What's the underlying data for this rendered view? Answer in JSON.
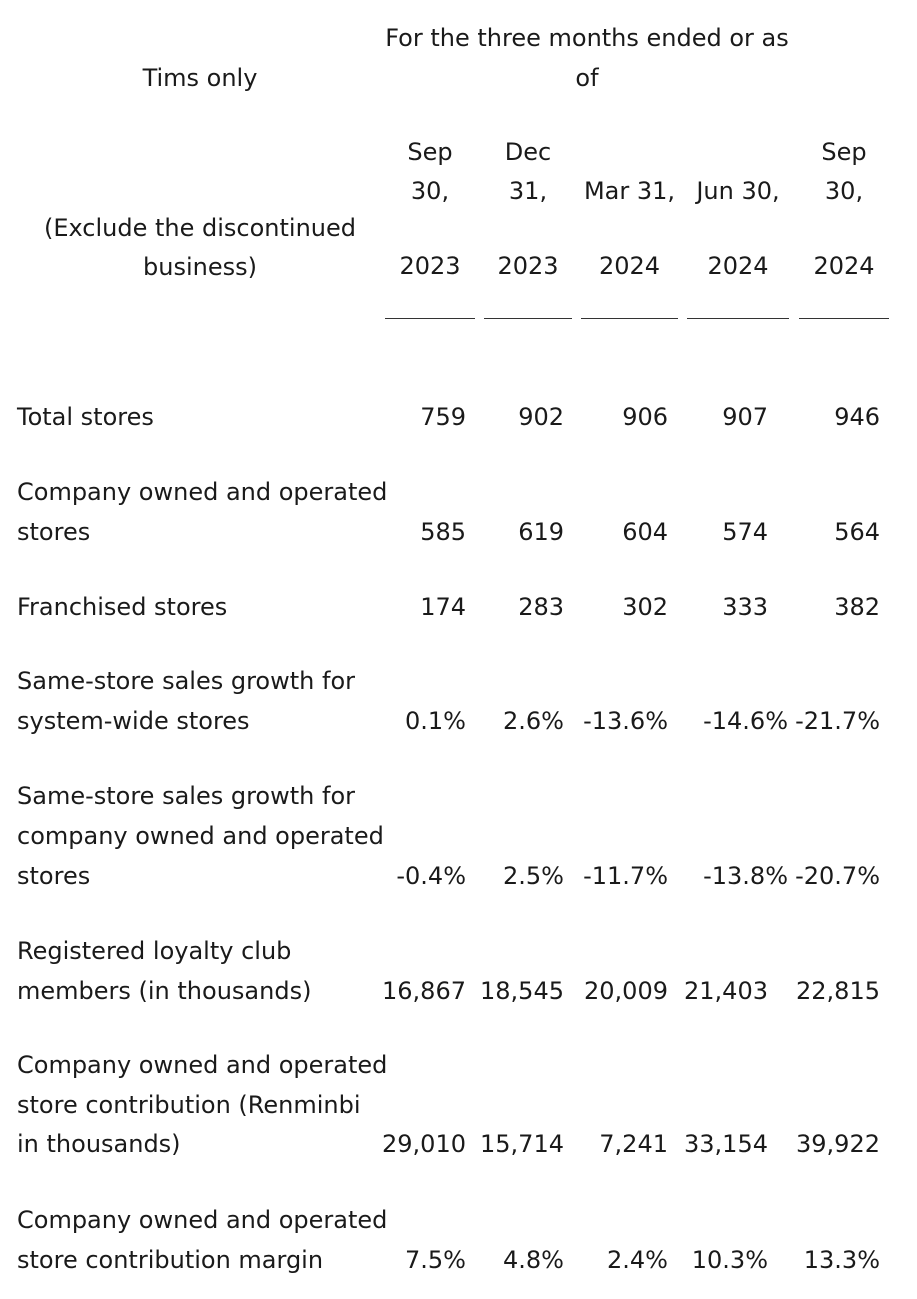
{
  "header": {
    "row_label_title": "Tims only",
    "row_label_subtitle_line1": "(Exclude the discontinued",
    "row_label_subtitle_line2": "business)",
    "period_caption_line1": "For the three months ended or as",
    "period_caption_line2": "of",
    "columns": [
      {
        "line1": "Sep",
        "line2": "30,",
        "year": "2023"
      },
      {
        "line1": "Dec",
        "line2": "31,",
        "year": "2023"
      },
      {
        "line1": "",
        "line2": "Mar 31,",
        "year": "2024"
      },
      {
        "line1": "",
        "line2": "Jun 30,",
        "year": "2024"
      },
      {
        "line1": "Sep",
        "line2": "30,",
        "year": "2024"
      }
    ]
  },
  "rows": [
    {
      "label": [
        "Total stores"
      ],
      "values": [
        "759",
        "902",
        "906",
        "907",
        "946"
      ]
    },
    {
      "label": [
        "Company owned and operated",
        "stores"
      ],
      "values": [
        "585",
        "619",
        "604",
        "574",
        "564"
      ]
    },
    {
      "label": [
        "Franchised stores"
      ],
      "values": [
        "174",
        "283",
        "302",
        "333",
        "382"
      ]
    },
    {
      "label": [
        "Same-store sales growth for",
        "system-wide stores"
      ],
      "values": [
        "0.1%",
        "2.6%",
        "-13.6%",
        "-14.6%",
        "-21.7%"
      ]
    },
    {
      "label": [
        "Same-store sales growth for",
        "company owned and operated",
        "stores"
      ],
      "values": [
        "-0.4%",
        "2.5%",
        "-11.7%",
        "-13.8%",
        "-20.7%"
      ]
    },
    {
      "label": [
        "Registered loyalty club",
        "members (in thousands)"
      ],
      "values": [
        "16,867",
        "18,545",
        "20,009",
        "21,403",
        "22,815"
      ]
    },
    {
      "label": [
        "Company owned and operated",
        "store contribution (Renminbi",
        "in thousands)"
      ],
      "values": [
        "29,010",
        "15,714",
        "7,241",
        "33,154",
        "39,922"
      ]
    },
    {
      "label": [
        "Company owned and operated",
        "store contribution margin"
      ],
      "values": [
        "7.5%",
        "4.8%",
        "2.4%",
        "10.3%",
        "13.3%"
      ]
    }
  ]
}
